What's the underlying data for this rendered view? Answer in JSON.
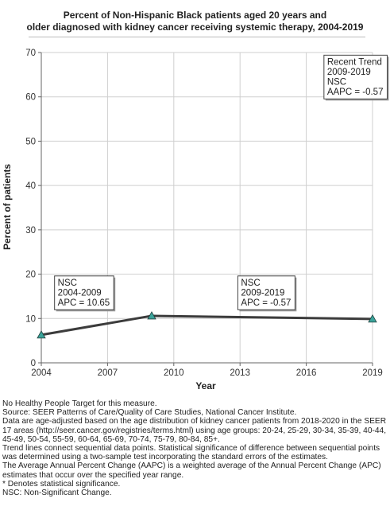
{
  "chart_data": {
    "type": "line",
    "title_line1": "Percent of Non-Hispanic Black patients aged 20 years and",
    "title_line2": "older diagnosed with kidney cancer receiving systemic therapy, 2004-2019",
    "xlabel": "Year",
    "ylabel": "Percent of patients",
    "xlim": [
      2004,
      2019
    ],
    "ylim": [
      0,
      70
    ],
    "xticks": [
      2004,
      2007,
      2010,
      2013,
      2016,
      2019
    ],
    "yticks": [
      0,
      10,
      20,
      30,
      40,
      50,
      60,
      70
    ],
    "grid": true,
    "series": [
      {
        "x": [
          2004,
          2009,
          2019
        ],
        "values": [
          6.3,
          10.6,
          9.9
        ]
      }
    ],
    "marker_color": "#3aa39a",
    "line_color": "#3c3c3c",
    "annotations": [
      {
        "lines": [
          "NSC",
          "2004-2009",
          "APC = 10.65"
        ],
        "anchor_x": 2004.6,
        "anchor_y": 19.6
      },
      {
        "lines": [
          "NSC",
          "2009-2019",
          "APC = -0.57"
        ],
        "anchor_x": 2012.9,
        "anchor_y": 19.6
      },
      {
        "lines": [
          "Recent Trend",
          "2009-2019",
          "NSC",
          "AAPC = -0.57"
        ],
        "anchor_x": 2016.8,
        "anchor_y": 69.4
      }
    ]
  },
  "notes": [
    "No Healthy People Target for this measure.",
    "Source: SEER Patterns of Care/Quality of Care Studies, National Cancer Institute.",
    "Data are age-adjusted based on the age distribution of kidney cancer patients from 2018-2020 in the SEER 17 areas (http://seer.cancer.gov/registries/terms.html) using age groups: 20-24, 25-29, 30-34, 35-39, 40-44, 45-49, 50-54, 55-59, 60-64, 65-69, 70-74, 75-79, 80-84, 85+.",
    "Trend lines connect sequential data points. Statistical significance of difference between sequential points was determined using a two-sample test incorporating the standard errors of the estimates.",
    "The Average Annual Percent Change (AAPC) is a weighted average of the Annual Percent Change (APC) estimates that occur over the specified year range.",
    "* Denotes statistical significance.",
    "NSC: Non-Significant Change."
  ]
}
